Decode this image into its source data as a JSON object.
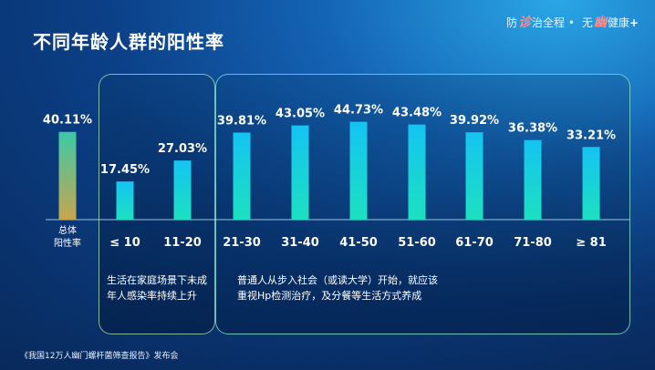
{
  "title": "不同年龄人群的阳性率",
  "brand": {
    "text_1": "防",
    "logo_1": "诊",
    "text_2": "治全程",
    "dot": "•",
    "text_3": "无",
    "logo_2": "幽",
    "text_4": "健康",
    "plus": "+"
  },
  "notes": {
    "left": "生活在家庭场景下未成年人感染率持续上升",
    "right": "普通人从步入社会（或读大学）开始，就应该重视Hp检测治疗，及分餐等生活方式养成"
  },
  "footer": "《我国12万人幽门螺杆菌筛查报告》发布会",
  "chart_data": {
    "type": "bar",
    "title": "不同年龄人群的阳性率",
    "categories": [
      "总体\n阳性率",
      "≤ 10",
      "11-20",
      "21-30",
      "31-40",
      "41-50",
      "51-60",
      "61-70",
      "71-80",
      "≥ 81"
    ],
    "values": [
      40.11,
      17.45,
      27.03,
      39.81,
      43.05,
      44.73,
      43.48,
      39.92,
      36.38,
      33.21
    ],
    "value_labels": [
      "40.11%",
      "17.45%",
      "27.03%",
      "39.81%",
      "43.05%",
      "44.73%",
      "43.48%",
      "39.92%",
      "36.38%",
      "33.21%"
    ],
    "ylim": [
      0,
      50
    ],
    "grid": false,
    "colors": {
      "overall_top": "#3cc9a6",
      "overall_bottom": "#c7a64e",
      "bar_top": "#14c4f2",
      "bar_bottom": "#1de0c0"
    }
  }
}
